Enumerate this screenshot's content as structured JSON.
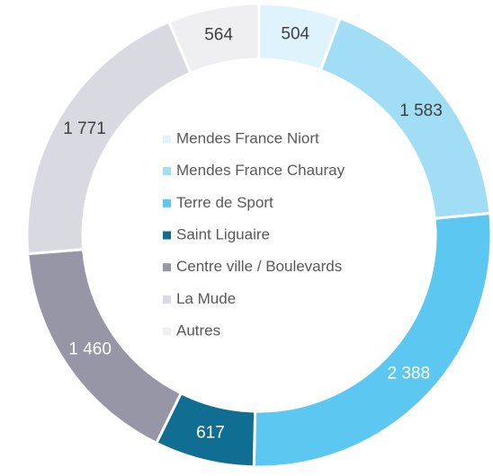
{
  "chart_data": {
    "type": "donut",
    "categories": [
      "Mendes France Niort",
      "Mendes France Chauray",
      "Terre de Sport",
      "Saint Liguaire",
      "Centre ville / Boulevards",
      "La Mude",
      "Autres"
    ],
    "values": [
      504,
      1583,
      2388,
      617,
      1460,
      1771,
      564
    ],
    "value_labels": [
      "504",
      "1 583",
      "2 388",
      "617",
      "1 460",
      "1 771",
      "564"
    ],
    "colors": [
      "#def3fb",
      "#a2ddf6",
      "#5cc8f2",
      "#0f6e92",
      "#9696a6",
      "#d9d9e1",
      "#efeff1"
    ],
    "legend": "center"
  }
}
